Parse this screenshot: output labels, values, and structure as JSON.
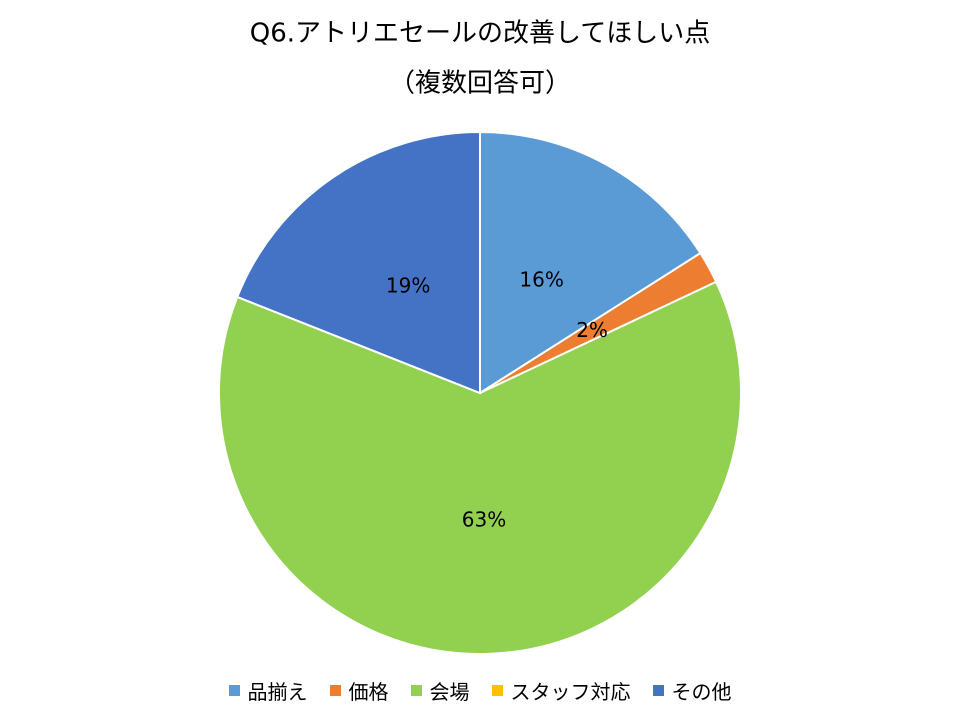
{
  "chart_data": {
    "type": "pie",
    "title": "Q6.アトリエセールの改善してほしい点",
    "subtitle": "（複数回答可）",
    "categories": [
      "品揃え",
      "価格",
      "会場",
      "スタッフ対応",
      "その他"
    ],
    "values": [
      16,
      2,
      63,
      0,
      19
    ],
    "value_labels": [
      "16%",
      "2%",
      "63%",
      null,
      "19%"
    ],
    "colors": [
      "#5b9bd5",
      "#ed7d31",
      "#92d050",
      "#ffc000",
      "#4472c4"
    ],
    "legend": "bottom"
  }
}
